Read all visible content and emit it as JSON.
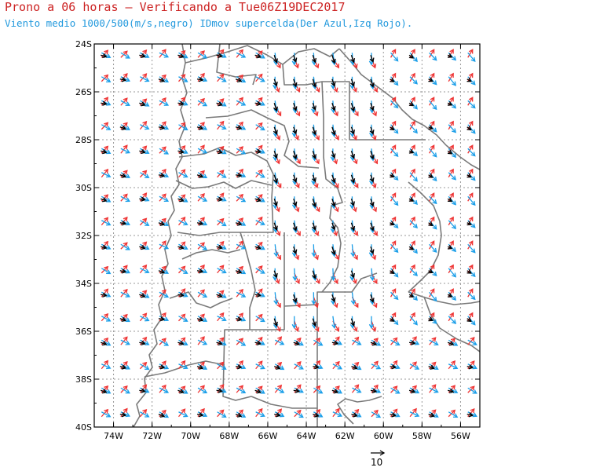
{
  "title": "Prono a 06 horas — Verificando a Tue06Z19DEC2017",
  "subtitle": "Viento medio 1000/500(m/s,negro) IDmov supercelda(Der Azul,Izq Rojo).",
  "map": {
    "lon_range": [
      -75,
      -55
    ],
    "lat_range": [
      -40,
      -24
    ],
    "lat_labels": [
      "24S",
      "26S",
      "28S",
      "30S",
      "32S",
      "34S",
      "36S",
      "38S",
      "40S"
    ],
    "lon_labels": [
      "74W",
      "72W",
      "70W",
      "68W",
      "66W",
      "64W",
      "62W",
      "60W",
      "58W",
      "56W"
    ],
    "gridlines": "dotted",
    "colors": {
      "mean_wind": "#000000",
      "right_mover": "#1a9ee8",
      "left_mover": "#ee3333",
      "borders": "#7a7a7a",
      "grid": "#9a9a9a"
    },
    "reference_vector": {
      "label": "10",
      "unit": "m/s"
    }
  }
}
